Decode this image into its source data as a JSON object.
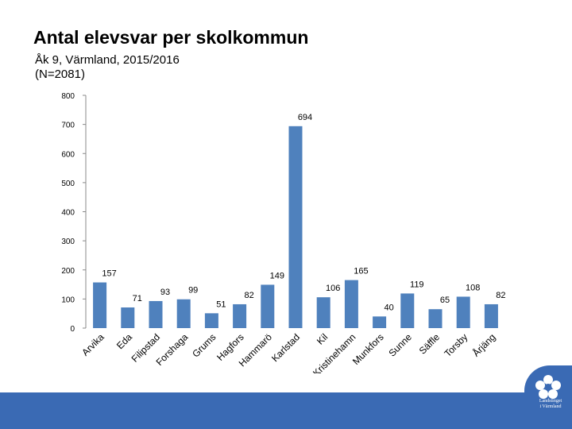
{
  "slide": {
    "title": "Antal elevsvar per skolkommun",
    "subtitle_line1": "Åk 9, Värmland, 2015/2016",
    "subtitle_line2": "(N=2081)"
  },
  "logo": {
    "line1": "Landstinget",
    "line2": "i Värmland"
  },
  "colors": {
    "bar": "#4f81bd",
    "footer": "#3a6ab4"
  },
  "chart_data": {
    "type": "bar",
    "title": "",
    "xlabel": "",
    "ylabel": "",
    "ylim": [
      0,
      800
    ],
    "yticks": [
      0,
      100,
      200,
      300,
      400,
      500,
      600,
      700,
      800
    ],
    "categories": [
      "Arvika",
      "Eda",
      "Filipstad",
      "Forshaga",
      "Grums",
      "Hagfors",
      "Hammarö",
      "Karlstad",
      "Kil",
      "Kristinehamn",
      "Munkfors",
      "Sunne",
      "Säffle",
      "Torsby",
      "Årjäng"
    ],
    "values": [
      157,
      71,
      93,
      99,
      51,
      82,
      149,
      694,
      106,
      165,
      40,
      119,
      65,
      108,
      82
    ],
    "grid": false,
    "legend": "none"
  }
}
